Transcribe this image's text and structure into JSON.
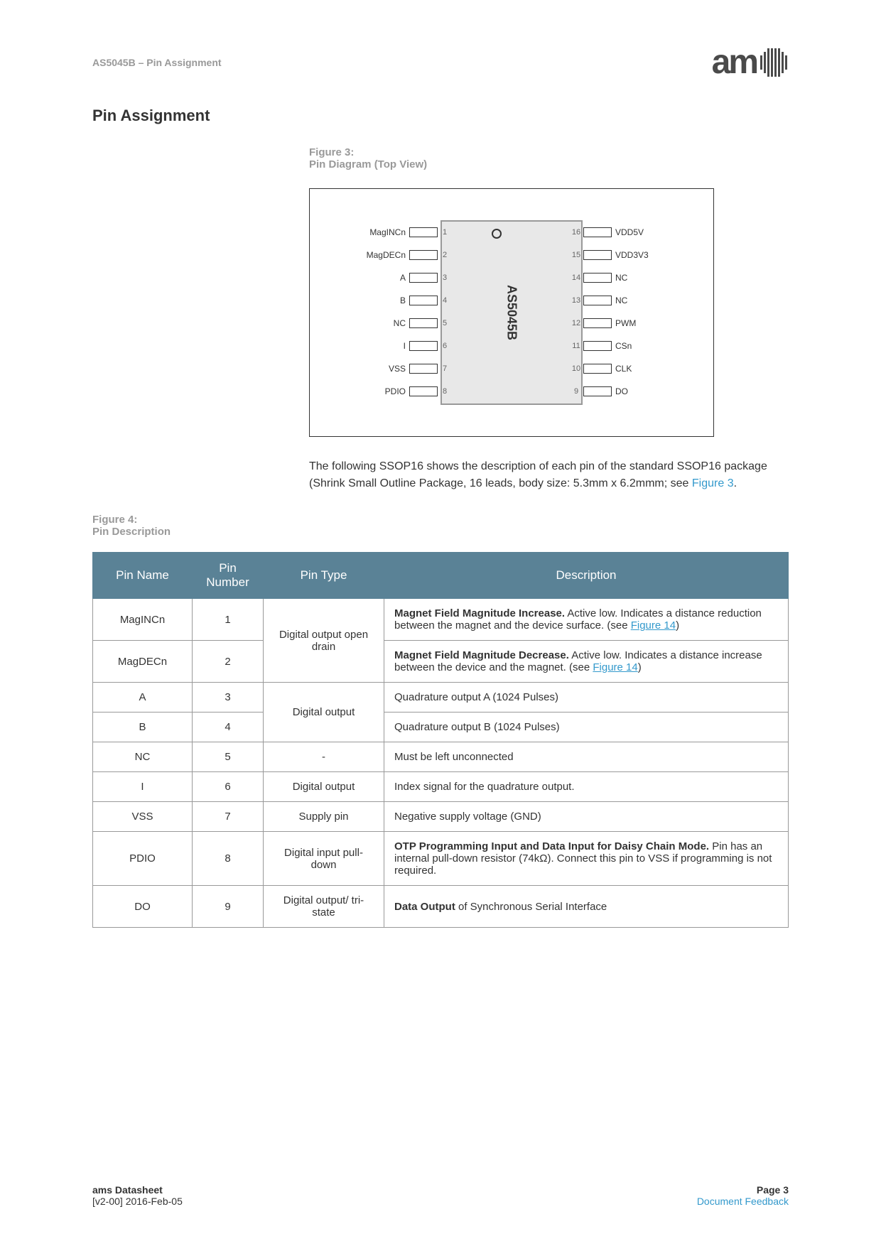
{
  "header": {
    "product": "AS5045B",
    "section": "Pin Assignment",
    "logo_text": "am"
  },
  "section_title": "Pin Assignment",
  "figure3": {
    "label": "Figure 3:",
    "title": "Pin Diagram (Top View)"
  },
  "chip": {
    "label": "AS5045B",
    "left_pins": [
      {
        "name": "MagINCn",
        "num": "1"
      },
      {
        "name": "MagDECn",
        "num": "2"
      },
      {
        "name": "A",
        "num": "3"
      },
      {
        "name": "B",
        "num": "4"
      },
      {
        "name": "NC",
        "num": "5"
      },
      {
        "name": "I",
        "num": "6"
      },
      {
        "name": "VSS",
        "num": "7"
      },
      {
        "name": "PDIO",
        "num": "8"
      }
    ],
    "right_pins": [
      {
        "name": "VDD5V",
        "num": "16"
      },
      {
        "name": "VDD3V3",
        "num": "15"
      },
      {
        "name": "NC",
        "num": "14"
      },
      {
        "name": "NC",
        "num": "13"
      },
      {
        "name": "PWM",
        "num": "12"
      },
      {
        "name": "CSn",
        "num": "11"
      },
      {
        "name": "CLK",
        "num": "10"
      },
      {
        "name": "DO",
        "num": "9"
      }
    ]
  },
  "body_text_1": "The following SSOP16 shows the description of each pin of the standard SSOP16 package (Shrink Small Outline Package, 16 leads, body size: 5.3mm x 6.2mmm; see ",
  "body_text_link": "Figure 3",
  "body_text_2": ".",
  "figure4": {
    "label": "Figure 4:",
    "title": "Pin Description"
  },
  "table": {
    "headers": [
      "Pin Name",
      "Pin Number",
      "Pin Type",
      "Description"
    ],
    "rows": [
      {
        "name": "MagINCn",
        "num": "1",
        "type": "Digital output open drain",
        "desc_bold": "Magnet Field Magnitude Increase.",
        "desc_rest": " Active low. Indicates a distance reduction between the magnet and the device surface. (see ",
        "desc_link": "Figure 14",
        "desc_after": ")"
      },
      {
        "name": "MagDECn",
        "num": "2",
        "type": "",
        "desc_bold": "Magnet Field Magnitude Decrease.",
        "desc_rest": " Active low. Indicates a distance increase between the device and the magnet. (see ",
        "desc_link": "Figure 14",
        "desc_after": ")"
      },
      {
        "name": "A",
        "num": "3",
        "type": "Digital output",
        "desc": "Quadrature output A (1024 Pulses)"
      },
      {
        "name": "B",
        "num": "4",
        "type": "",
        "desc": "Quadrature output B (1024 Pulses)"
      },
      {
        "name": "NC",
        "num": "5",
        "type": "-",
        "desc": "Must be left unconnected"
      },
      {
        "name": "I",
        "num": "6",
        "type": "Digital output",
        "desc": "Index signal for the quadrature output."
      },
      {
        "name": "VSS",
        "num": "7",
        "type": "Supply pin",
        "desc": "Negative supply voltage (GND)"
      },
      {
        "name": "PDIO",
        "num": "8",
        "type": "Digital input pull-down",
        "desc_bold": "OTP Programming Input and Data Input for Daisy Chain Mode.",
        "desc_rest": " Pin has an internal pull-down resistor (74kΩ). Connect this pin to VSS if programming is not required."
      },
      {
        "name": "DO",
        "num": "9",
        "type": "Digital output/ tri-state",
        "desc_bold": "Data Output",
        "desc_rest": " of Synchronous Serial Interface"
      }
    ]
  },
  "footer": {
    "left1": "ams Datasheet",
    "left2": "[v2-00] 2016-Feb-05",
    "right1": "Page 3",
    "right2": "Document Feedback"
  }
}
